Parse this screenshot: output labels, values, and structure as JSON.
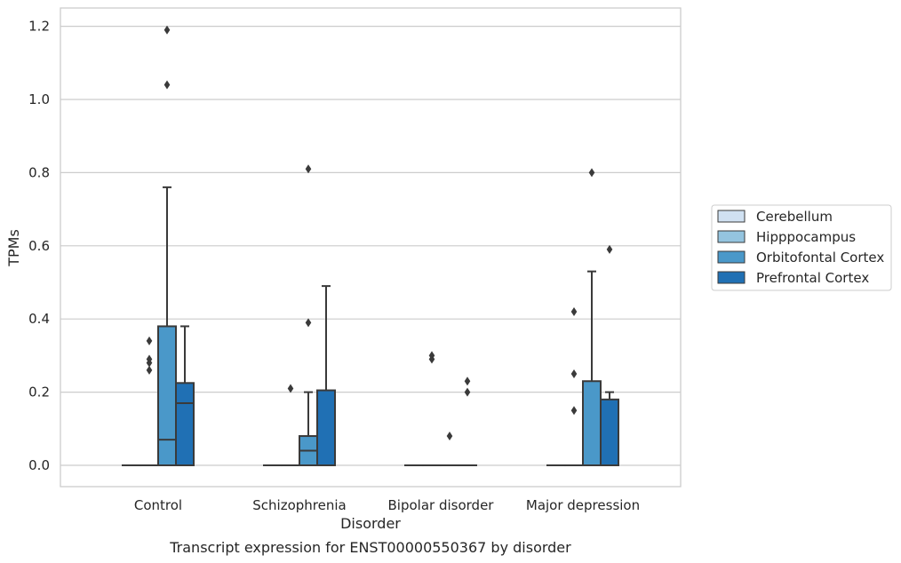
{
  "chart_data": {
    "type": "box",
    "caption": "Transcript expression for ENST00000550367 by disorder",
    "xlabel": "Disorder",
    "ylabel": "TPMs",
    "ylim": [
      -0.06,
      1.25
    ],
    "yticks": [
      0.0,
      0.2,
      0.4,
      0.6,
      0.8,
      1.0,
      1.2
    ],
    "ytick_labels": [
      "0.0",
      "0.2",
      "0.4",
      "0.6",
      "0.8",
      "1.0",
      "1.2"
    ],
    "grid": "horizontal",
    "legend_position": "right",
    "categories": [
      "Control",
      "Schizophrenia",
      "Bipolar disorder",
      "Major depression"
    ],
    "series": [
      {
        "name": "Cerebellum",
        "color": "#d0e1f2",
        "boxes": [
          {
            "q1": 0,
            "median": 0,
            "q3": 0,
            "whisker_low": 0,
            "whisker_high": 0,
            "outliers": []
          },
          {
            "q1": 0,
            "median": 0,
            "q3": 0,
            "whisker_low": 0,
            "whisker_high": 0,
            "outliers": []
          },
          {
            "q1": 0,
            "median": 0,
            "q3": 0,
            "whisker_low": 0,
            "whisker_high": 0,
            "outliers": []
          },
          {
            "q1": 0,
            "median": 0,
            "q3": 0,
            "whisker_low": 0,
            "whisker_high": 0,
            "outliers": []
          }
        ]
      },
      {
        "name": "Hipppocampus",
        "color": "#94c4df",
        "boxes": [
          {
            "q1": 0,
            "median": 0,
            "q3": 0,
            "whisker_low": 0,
            "whisker_high": 0,
            "outliers": [
              0.34,
              0.28,
              0.29,
              0.26
            ]
          },
          {
            "q1": 0,
            "median": 0,
            "q3": 0,
            "whisker_low": 0,
            "whisker_high": 0,
            "outliers": [
              0.21
            ]
          },
          {
            "q1": 0,
            "median": 0,
            "q3": 0,
            "whisker_low": 0,
            "whisker_high": 0,
            "outliers": [
              0.3,
              0.29
            ]
          },
          {
            "q1": 0,
            "median": 0,
            "q3": 0,
            "whisker_low": 0,
            "whisker_high": 0,
            "outliers": [
              0.25,
              0.15,
              0.42
            ]
          }
        ]
      },
      {
        "name": "Orbitofontal Cortex",
        "color": "#4a98c9",
        "boxes": [
          {
            "q1": 0,
            "median": 0.07,
            "q3": 0.38,
            "whisker_low": 0,
            "whisker_high": 0.76,
            "outliers": [
              1.19,
              1.04
            ]
          },
          {
            "q1": 0,
            "median": 0.04,
            "q3": 0.08,
            "whisker_low": 0,
            "whisker_high": 0.2,
            "outliers": [
              0.39,
              0.81
            ]
          },
          {
            "q1": 0,
            "median": 0,
            "q3": 0,
            "whisker_low": 0,
            "whisker_high": 0,
            "outliers": [
              0.08
            ]
          },
          {
            "q1": 0,
            "median": 0,
            "q3": 0.23,
            "whisker_low": 0,
            "whisker_high": 0.53,
            "outliers": [
              0.8
            ]
          }
        ]
      },
      {
        "name": "Prefrontal Cortex",
        "color": "#2070b4",
        "boxes": [
          {
            "q1": 0,
            "median": 0.17,
            "q3": 0.225,
            "whisker_low": 0,
            "whisker_high": 0.38,
            "outliers": []
          },
          {
            "q1": 0,
            "median": 0,
            "q3": 0.205,
            "whisker_low": 0,
            "whisker_high": 0.49,
            "outliers": []
          },
          {
            "q1": 0,
            "median": 0,
            "q3": 0,
            "whisker_low": 0,
            "whisker_high": 0,
            "outliers": [
              0.23,
              0.2
            ]
          },
          {
            "q1": 0,
            "median": 0,
            "q3": 0.18,
            "whisker_low": 0,
            "whisker_high": 0.2,
            "outliers": [
              0.59
            ]
          }
        ]
      }
    ]
  }
}
